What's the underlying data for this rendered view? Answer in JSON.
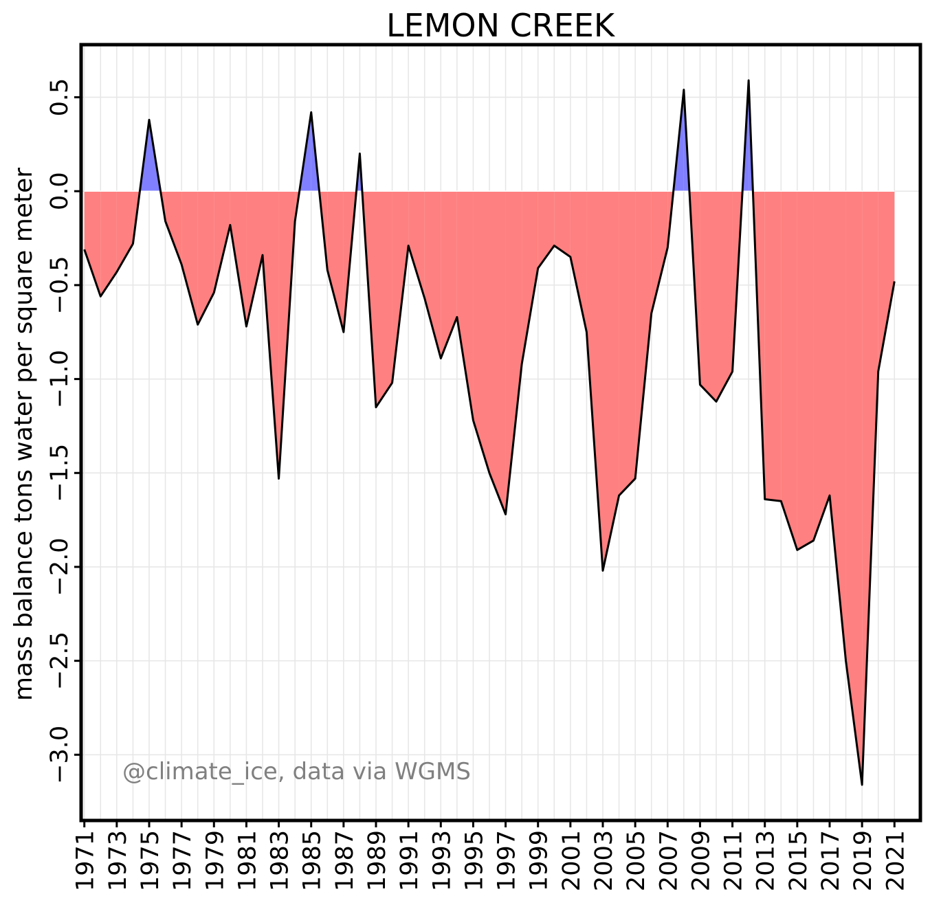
{
  "chart_data": {
    "type": "area",
    "title": "LEMON CREEK",
    "xlabel": "",
    "ylabel": "mass balance tons water per square meter",
    "annotation": "@climate_ice, data via WGMS",
    "xlim": [
      1970.8,
      2022.6
    ],
    "ylim": [
      -3.35,
      0.78
    ],
    "grid": true,
    "x_tick_labels": [
      "1971",
      "1973",
      "1975",
      "1977",
      "1979",
      "1981",
      "1983",
      "1985",
      "1987",
      "1989",
      "1991",
      "1993",
      "1995",
      "1997",
      "1999",
      "2001",
      "2003",
      "2005",
      "2007",
      "2009",
      "2011",
      "2013",
      "2015",
      "2017",
      "2019",
      "2021"
    ],
    "y_tick_values": [
      0.5,
      0.0,
      -0.5,
      -1.0,
      -1.5,
      -2.0,
      -2.5,
      -3.0
    ],
    "y_tick_labels": [
      "0.5",
      "0.0",
      "−0.5",
      "−1.0",
      "−1.5",
      "−2.0",
      "−2.5",
      "−3.0"
    ],
    "colors": {
      "positive": "#8080ff",
      "negative": "#ff8080",
      "line": "#000000",
      "grid": "#e6e6e6"
    },
    "series": [
      {
        "x": [
          1971,
          1972,
          1973,
          1974,
          1975,
          1976,
          1977,
          1978,
          1979,
          1980,
          1981,
          1982,
          1983,
          1984,
          1985,
          1986,
          1987,
          1988,
          1989,
          1990,
          1991,
          1992,
          1993,
          1994,
          1995,
          1996,
          1997,
          1998,
          1999,
          2000,
          2001,
          2002,
          2003,
          2004,
          2005,
          2006,
          2007,
          2008,
          2009,
          2010,
          2011,
          2012,
          2013,
          2014,
          2015,
          2016,
          2017,
          2018,
          2019,
          2020,
          2021
        ],
        "values": [
          -0.31,
          -0.56,
          -0.43,
          -0.28,
          0.38,
          -0.16,
          -0.39,
          -0.71,
          -0.54,
          -0.18,
          -0.72,
          -0.34,
          -1.53,
          -0.16,
          0.42,
          -0.42,
          -0.75,
          0.2,
          -1.15,
          -1.02,
          -0.29,
          -0.57,
          -0.89,
          -0.67,
          -1.22,
          -1.5,
          -1.72,
          -0.92,
          -0.41,
          -0.29,
          -0.35,
          -0.75,
          -2.02,
          -1.62,
          -1.53,
          -0.65,
          -0.3,
          0.54,
          -1.03,
          -1.12,
          -0.96,
          0.59,
          -1.64,
          -1.65,
          -1.91,
          -1.86,
          -1.62,
          -2.5,
          -3.16,
          -0.96,
          -0.48
        ]
      }
    ]
  }
}
